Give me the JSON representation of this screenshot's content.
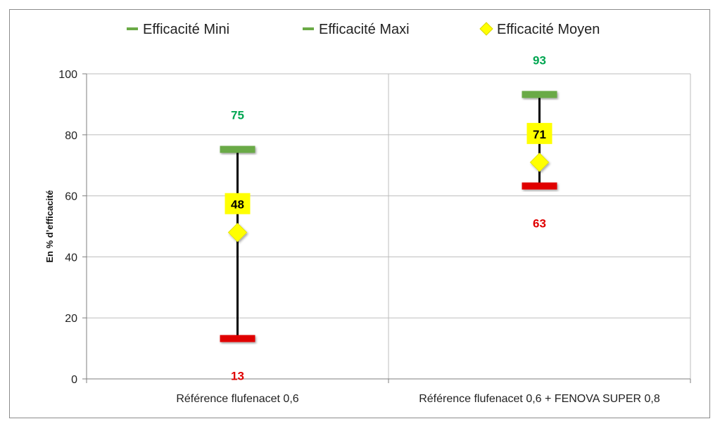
{
  "chart_data": {
    "type": "stock",
    "ylabel": "En % d’efficacité",
    "ylim": [
      0,
      100
    ],
    "yticks": [
      "0",
      "20",
      "40",
      "60",
      "80",
      "100"
    ],
    "categories": [
      "Référence flufenacet  0,6",
      "Référence flufenacet  0,6 + FENOVA SUPER 0,8"
    ],
    "series": [
      {
        "name": "Efficacité Mini",
        "values": [
          13,
          63
        ],
        "labels": [
          "13",
          "63"
        ],
        "color": "#e00000"
      },
      {
        "name": "Efficacité Maxi",
        "values": [
          75,
          93
        ],
        "labels": [
          "75",
          "93"
        ],
        "color": "#6aaa46"
      },
      {
        "name": "Efficacité Moyen",
        "values": [
          48,
          71
        ],
        "labels": [
          "48",
          "71"
        ],
        "color": "#ffff00"
      }
    ],
    "legend": {
      "position": "top",
      "items": [
        {
          "label": "Efficacité Mini",
          "color": "#6aaa46",
          "marker": "dash"
        },
        {
          "label": "Efficacité Maxi",
          "color": "#6aaa46",
          "marker": "dash"
        },
        {
          "label": "Efficacité Moyen",
          "color": "#ffff00",
          "marker": "diamond"
        }
      ]
    },
    "label_colors": {
      "mini": "#e00000",
      "maxi": "#00a651",
      "moyen": "#000000",
      "moyen_box": "#ffff00"
    },
    "grid": true
  }
}
